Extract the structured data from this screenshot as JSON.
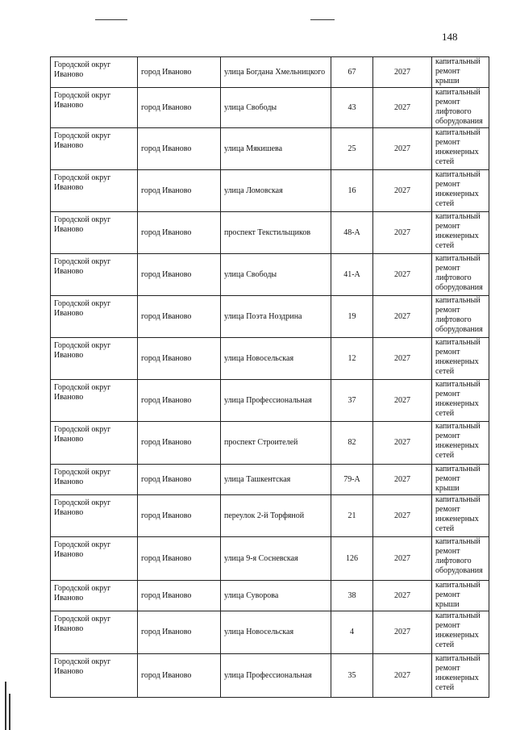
{
  "page_number": "148",
  "table": {
    "rows": [
      [
        "Городской округ Иваново",
        "город Иваново",
        "улица Богдана Хмельницкого",
        "67",
        "2027",
        "капитальный ремонт крыши"
      ],
      [
        "Городской округ Иваново",
        "город Иваново",
        "улица Свободы",
        "43",
        "2027",
        "капитальный ремонт лифтового оборудования"
      ],
      [
        "Городской округ Иваново",
        "город Иваново",
        "улица Мякишева",
        "25",
        "2027",
        "капитальный ремонт инженерных сетей"
      ],
      [
        "Городской округ Иваново",
        "город Иваново",
        "улица Ломовская",
        "16",
        "2027",
        "капитальный ремонт инженерных сетей"
      ],
      [
        "Городской округ Иваново",
        "город Иваново",
        "проспект Текстильщиков",
        "48-А",
        "2027",
        "капитальный ремонт инженерных сетей"
      ],
      [
        "Городской округ Иваново",
        "город Иваново",
        "улица Свободы",
        "41-А",
        "2027",
        "капитальный ремонт лифтового оборудования"
      ],
      [
        "Городской округ Иваново",
        "город Иваново",
        "улица Поэта Ноздрина",
        "19",
        "2027",
        "капитальный ремонт лифтового оборудования"
      ],
      [
        "Городской округ Иваново",
        "город Иваново",
        "улица Новосельская",
        "12",
        "2027",
        "капитальный ремонт инженерных сетей"
      ],
      [
        "Городской округ Иваново",
        "город Иваново",
        "улица Профессиональная",
        "37",
        "2027",
        "капитальный ремонт инженерных сетей"
      ],
      [
        "Городской округ Иваново",
        "город Иваново",
        "проспект Строителей",
        "82",
        "2027",
        "капитальный ремонт инженерных сетей"
      ],
      [
        "Городской округ Иваново",
        "город Иваново",
        "улица Ташкентская",
        "79-А",
        "2027",
        "капитальный ремонт крыши"
      ],
      [
        "Городской округ Иваново",
        "город Иваново",
        "переулок 2-й Торфяной",
        "21",
        "2027",
        "капитальный ремонт инженерных сетей"
      ],
      [
        "Городской округ Иваново",
        "город Иваново",
        "улица 9-я Сосневская",
        "126",
        "2027",
        "капитальный ремонт лифтового оборудования"
      ],
      [
        "Городской округ Иваново",
        "город Иваново",
        "улица Суворова",
        "38",
        "2027",
        "капитальный ремонт крыши"
      ],
      [
        "Городской округ Иваново",
        "город Иваново",
        "улица Новосельская",
        "4",
        "2027",
        "капитальный ремонт инженерных сетей"
      ],
      [
        "Городской округ Иваново",
        "город Иваново",
        "улица Профессиональная",
        "35",
        "2027",
        "капитальный ремонт инженерных сетей"
      ]
    ]
  }
}
